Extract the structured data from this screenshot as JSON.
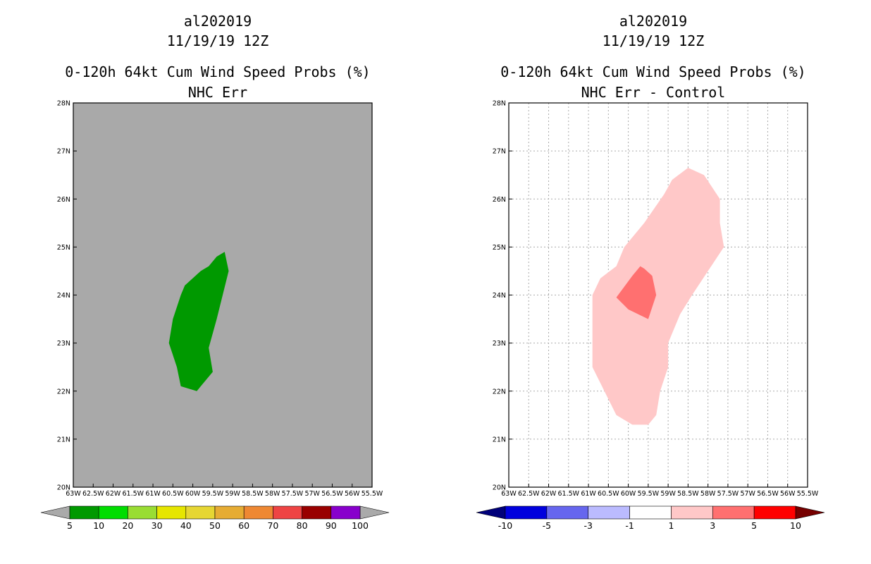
{
  "chart_data": [
    {
      "type": "heatmap",
      "storm_id": "al202019",
      "date": "11/19/19 12Z",
      "title": "0-120h 64kt Cum Wind Speed Probs (%)",
      "subtitle": "NHC Err",
      "xlim": [
        -63,
        -55.5
      ],
      "ylim": [
        20,
        28
      ],
      "x_tick_labels": [
        "63W",
        "62.5W",
        "62W",
        "61.5W",
        "61W",
        "60.5W",
        "60W",
        "59.5W",
        "59W",
        "58.5W",
        "58W",
        "57.5W",
        "57W",
        "56.5W",
        "56W",
        "55.5W"
      ],
      "y_tick_labels": [
        "20N",
        "21N",
        "22N",
        "23N",
        "24N",
        "25N",
        "26N",
        "27N",
        "28N"
      ],
      "grid": false,
      "background_color": "#a9a9a9",
      "colorbar": {
        "labels": [
          "5",
          "10",
          "20",
          "30",
          "40",
          "50",
          "60",
          "70",
          "80",
          "90",
          "100"
        ],
        "colors": [
          "#009900",
          "#00dd00",
          "#99dd33",
          "#e6e600",
          "#e6d633",
          "#e6ac33",
          "#ee8833",
          "#ee4444",
          "#990000",
          "#8800cc"
        ],
        "low_color": "#aaaaaa",
        "high_color": "#aaaaaa"
      },
      "regions": [
        {
          "level": "5-10",
          "color": "#009900",
          "points": [
            [
              -59.2,
              24.9
            ],
            [
              -59.1,
              24.5
            ],
            [
              -59.4,
              23.5
            ],
            [
              -59.6,
              22.9
            ],
            [
              -59.5,
              22.4
            ],
            [
              -59.8,
              22.1
            ],
            [
              -59.9,
              22.0
            ],
            [
              -60.3,
              22.1
            ],
            [
              -60.4,
              22.5
            ],
            [
              -60.6,
              23.0
            ],
            [
              -60.5,
              23.5
            ],
            [
              -60.3,
              24.0
            ],
            [
              -60.2,
              24.2
            ],
            [
              -59.8,
              24.5
            ],
            [
              -59.6,
              24.6
            ],
            [
              -59.4,
              24.8
            ]
          ]
        }
      ]
    },
    {
      "type": "heatmap",
      "storm_id": "al202019",
      "date": "11/19/19 12Z",
      "title": "0-120h 64kt Cum Wind Speed Probs (%)",
      "subtitle": "NHC Err - Control",
      "xlim": [
        -63,
        -55.5
      ],
      "ylim": [
        20,
        28
      ],
      "x_tick_labels": [
        "63W",
        "62.5W",
        "62W",
        "61.5W",
        "61W",
        "60.5W",
        "60W",
        "59.5W",
        "59W",
        "58.5W",
        "58W",
        "57.5W",
        "57W",
        "56.5W",
        "56W",
        "55.5W"
      ],
      "y_tick_labels": [
        "20N",
        "21N",
        "22N",
        "23N",
        "24N",
        "25N",
        "26N",
        "27N",
        "28N"
      ],
      "grid": true,
      "background_color": "#ffffff",
      "colorbar": {
        "labels": [
          "-10",
          "-5",
          "-3",
          "-1",
          "1",
          "3",
          "5",
          "10"
        ],
        "colors": [
          "#0000dd",
          "#6666ee",
          "#bbbbff",
          "#ffffff",
          "#ffc8c8",
          "#ff7070",
          "#ff0000"
        ],
        "low_color": "#00007a",
        "high_color": "#770000"
      },
      "regions": [
        {
          "level": "1-3",
          "color": "#ffc8c8",
          "points": [
            [
              -58.5,
              26.65
            ],
            [
              -58.1,
              26.5
            ],
            [
              -57.7,
              26.0
            ],
            [
              -57.7,
              25.5
            ],
            [
              -57.6,
              25.0
            ],
            [
              -58.0,
              24.5
            ],
            [
              -58.4,
              24.0
            ],
            [
              -58.7,
              23.6
            ],
            [
              -59.0,
              23.0
            ],
            [
              -59.0,
              22.5
            ],
            [
              -59.2,
              22.0
            ],
            [
              -59.3,
              21.5
            ],
            [
              -59.5,
              21.3
            ],
            [
              -59.9,
              21.3
            ],
            [
              -60.3,
              21.5
            ],
            [
              -60.9,
              22.5
            ],
            [
              -60.9,
              24.0
            ],
            [
              -60.7,
              24.35
            ],
            [
              -60.3,
              24.6
            ],
            [
              -60.1,
              25.0
            ],
            [
              -59.6,
              25.5
            ],
            [
              -59.1,
              26.1
            ],
            [
              -58.9,
              26.4
            ]
          ]
        },
        {
          "level": "3-5",
          "color": "#ff7070",
          "points": [
            [
              -59.6,
              24.55
            ],
            [
              -59.4,
              24.4
            ],
            [
              -59.3,
              24.0
            ],
            [
              -59.5,
              23.5
            ],
            [
              -60.0,
              23.7
            ],
            [
              -60.3,
              23.95
            ],
            [
              -59.9,
              24.4
            ],
            [
              -59.7,
              24.6
            ]
          ]
        }
      ]
    }
  ]
}
